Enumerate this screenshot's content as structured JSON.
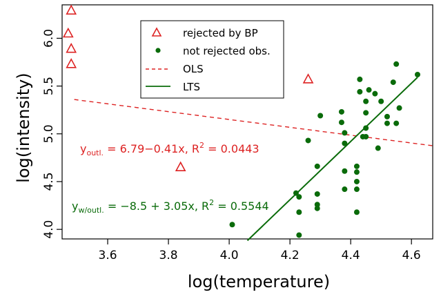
{
  "chart_data": {
    "type": "scatter",
    "xlabel": "log(temperature)",
    "ylabel": "log(intensity)",
    "xlim": [
      3.45,
      4.67
    ],
    "ylim": [
      3.9,
      6.35
    ],
    "x_ticks": [
      3.6,
      3.8,
      4.0,
      4.2,
      4.4,
      4.6
    ],
    "y_ticks": [
      4.0,
      4.5,
      5.0,
      5.5,
      6.0
    ],
    "x_tick_labels": [
      "3.6",
      "3.8",
      "4.0",
      "4.2",
      "4.4",
      "4.6"
    ],
    "y_tick_labels": [
      "4.0",
      "4.5",
      "5.0",
      "5.5",
      "6.0"
    ],
    "grid": false,
    "legend_position": "top-center",
    "legend": [
      {
        "label": "rejected by BP",
        "marker": "triangle",
        "color": "#dd2222"
      },
      {
        "label": "not rejected obs.",
        "marker": "dot",
        "color": "#0a6b0a"
      },
      {
        "label": "OLS",
        "line": "dashed",
        "color": "#dd2222"
      },
      {
        "label": "LTS",
        "line": "solid",
        "color": "#0a6b0a"
      }
    ],
    "series": [
      {
        "name": "rejected by BP",
        "marker": "triangle",
        "color": "#dd2222",
        "points": [
          [
            3.48,
            6.29
          ],
          [
            3.47,
            6.05
          ],
          [
            3.48,
            5.89
          ],
          [
            3.48,
            5.73
          ],
          [
            4.26,
            5.57
          ],
          [
            3.84,
            4.65
          ]
        ]
      },
      {
        "name": "not rejected obs.",
        "marker": "dot",
        "color": "#0a6b0a",
        "points": [
          [
            4.01,
            4.05
          ],
          [
            4.22,
            4.38
          ],
          [
            4.23,
            4.34
          ],
          [
            4.23,
            4.18
          ],
          [
            4.23,
            3.94
          ],
          [
            4.26,
            4.93
          ],
          [
            4.29,
            4.66
          ],
          [
            4.29,
            4.37
          ],
          [
            4.29,
            4.26
          ],
          [
            4.29,
            4.22
          ],
          [
            4.3,
            5.19
          ],
          [
            4.37,
            5.23
          ],
          [
            4.37,
            5.12
          ],
          [
            4.38,
            5.01
          ],
          [
            4.38,
            4.9
          ],
          [
            4.38,
            4.61
          ],
          [
            4.38,
            4.42
          ],
          [
            4.42,
            4.66
          ],
          [
            4.42,
            4.6
          ],
          [
            4.42,
            4.5
          ],
          [
            4.42,
            4.42
          ],
          [
            4.42,
            4.18
          ],
          [
            4.43,
            5.57
          ],
          [
            4.43,
            5.44
          ],
          [
            4.45,
            5.34
          ],
          [
            4.45,
            5.22
          ],
          [
            4.45,
            5.06
          ],
          [
            4.46,
            5.46
          ],
          [
            4.48,
            5.42
          ],
          [
            4.49,
            4.85
          ],
          [
            4.5,
            5.34
          ],
          [
            4.52,
            5.18
          ],
          [
            4.52,
            5.11
          ],
          [
            4.54,
            5.54
          ],
          [
            4.55,
            5.73
          ],
          [
            4.55,
            5.11
          ],
          [
            4.56,
            5.27
          ],
          [
            4.62,
            5.62
          ],
          [
            4.45,
            4.97
          ],
          [
            4.44,
            4.97
          ]
        ]
      }
    ],
    "lines": [
      {
        "name": "OLS",
        "intercept": 6.79,
        "slope": -0.41,
        "x_from": 3.49,
        "x_to": 4.67,
        "style": "dashed",
        "color": "#dd2222"
      },
      {
        "name": "LTS",
        "intercept": -8.5,
        "slope": 3.05,
        "x_from": 4.06,
        "x_to": 4.62,
        "style": "solid",
        "color": "#0a6b0a"
      }
    ],
    "annotations": [
      {
        "base": "y",
        "sub": "outl.",
        "body": " = 6.79−0.41x, R",
        "sup": "2",
        "tail": " = 0.0443",
        "color": "#dd2222"
      },
      {
        "base": "y",
        "sub": "w/outl.",
        "body": " = −8.5 + 3.05x, R",
        "sup": "2",
        "tail": " = 0.5544",
        "color": "#0a6b0a"
      }
    ]
  }
}
